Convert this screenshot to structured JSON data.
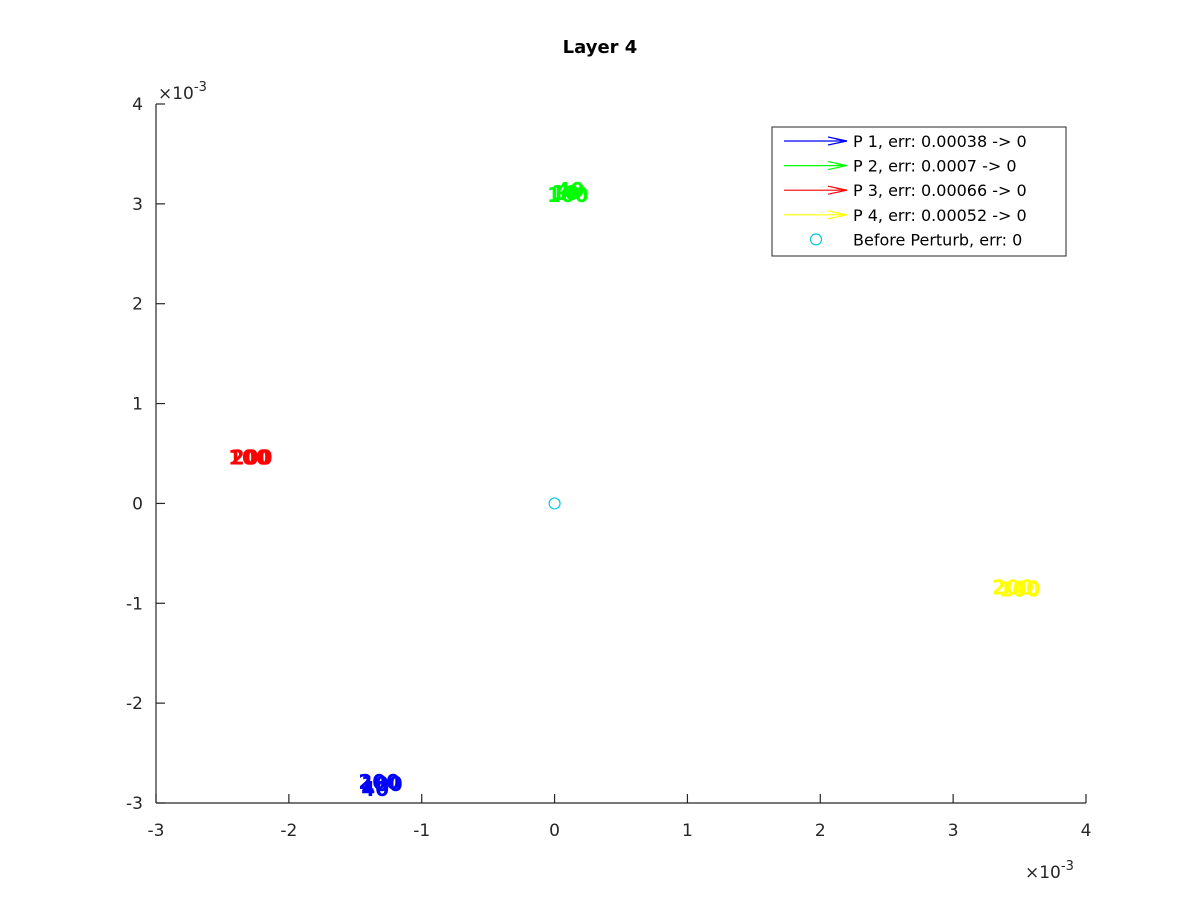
{
  "chart_data": {
    "type": "scatter",
    "title": "Layer 4",
    "xlabel": "",
    "ylabel": "",
    "x_exponent_label": "×10",
    "x_exponent_power": "-3",
    "y_exponent_label": "×10",
    "y_exponent_power": "-3",
    "xlim": [
      -3,
      4
    ],
    "ylim": [
      -3,
      4
    ],
    "xticks": [
      -3,
      -2,
      -1,
      0,
      1,
      2,
      3,
      4
    ],
    "yticks": [
      -3,
      -2,
      -1,
      0,
      1,
      2,
      3,
      4
    ],
    "xtick_labels": [
      "-3",
      "-2",
      "-1",
      "0",
      "1",
      "2",
      "3",
      "4"
    ],
    "ytick_labels": [
      "-3",
      "-2",
      "-1",
      "0",
      "1",
      "2",
      "3",
      "4"
    ],
    "grid": false,
    "legend_position": "top-right",
    "series": [
      {
        "name": "P 1, err: 0.00038 -> 0",
        "color": "#0000ff",
        "marker": "arrow",
        "points": [
          {
            "x": -1.35,
            "y": -2.85,
            "label": "40"
          },
          {
            "x": -1.3,
            "y": -2.8,
            "label": "100"
          },
          {
            "x": -1.32,
            "y": -2.78,
            "label": "200"
          }
        ]
      },
      {
        "name": "P 2, err: 0.0007 -> 0",
        "color": "#00ff00",
        "marker": "arrow",
        "points": [
          {
            "x": 0.12,
            "y": 3.15,
            "label": "40"
          },
          {
            "x": 0.1,
            "y": 3.1,
            "label": "100"
          },
          {
            "x": 0.08,
            "y": 3.12,
            "label": "10"
          }
        ]
      },
      {
        "name": "P 3, err: 0.00066 -> 0",
        "color": "#ff0000",
        "marker": "arrow",
        "points": [
          {
            "x": -2.3,
            "y": 0.47,
            "label": "100"
          },
          {
            "x": -2.28,
            "y": 0.47,
            "label": "200"
          }
        ]
      },
      {
        "name": "P 4, err: 0.00052 -> 0",
        "color": "#ffff00",
        "marker": "arrow",
        "points": [
          {
            "x": 3.45,
            "y": -0.83,
            "label": "200"
          },
          {
            "x": 3.5,
            "y": -0.85,
            "label": "100"
          },
          {
            "x": 3.55,
            "y": -0.84,
            "label": "40"
          }
        ]
      },
      {
        "name": "Before Perturb, err: 0",
        "color": "#00c8e0",
        "marker": "circle",
        "points": [
          {
            "x": 0,
            "y": 0
          }
        ]
      }
    ]
  }
}
